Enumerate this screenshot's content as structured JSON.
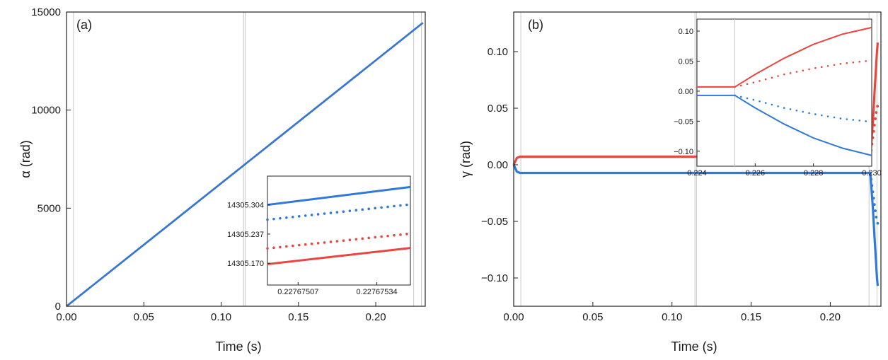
{
  "chart_data": [
    {
      "panel": "(a)",
      "type": "line",
      "xlabel": "Time (s)",
      "ylabel": "α (rad)",
      "xlim": [
        0.0,
        0.232
      ],
      "ylim": [
        0,
        15000
      ],
      "xticks": [
        0.0,
        0.05,
        0.1,
        0.15,
        0.2
      ],
      "xtick_labels": [
        "0.00",
        "0.05",
        "0.10",
        "0.15",
        "0.20"
      ],
      "yticks": [
        0,
        5000,
        10000,
        15000
      ],
      "ytick_labels": [
        "0",
        "5000",
        "10000",
        "15000"
      ],
      "vlines": [
        0.0045,
        0.1145,
        0.1155,
        0.2245,
        0.2295
      ],
      "series": [
        {
          "name": "red",
          "color": "#e8463f",
          "style": "solid",
          "x": [
            0.0,
            0.2305
          ],
          "y": [
            0,
            14450
          ]
        },
        {
          "name": "blue",
          "color": "#2f7ad8",
          "style": "solid",
          "x": [
            0.0,
            0.2305
          ],
          "y": [
            0,
            14450
          ]
        }
      ],
      "inset": {
        "xlim": [
          0.227674965,
          0.227675455
        ],
        "ylim": [
          14305.12,
          14305.37
        ],
        "xticks": [
          0.22767507,
          0.22767534
        ],
        "xtick_labels": [
          "0.22767507",
          "0.22767534"
        ],
        "yticks": [
          14305.17,
          14305.237,
          14305.304
        ],
        "ytick_labels": [
          "14305.170",
          "14305.237",
          "14305.304"
        ],
        "series": [
          {
            "name": "blue-solid",
            "color": "#2f7ad8",
            "style": "solid",
            "x": [
              0.227674965,
              0.227675455
            ],
            "y": [
              14305.304,
              14305.345
            ]
          },
          {
            "name": "blue-dotted",
            "color": "#2f7ad8",
            "style": "dotted",
            "x": [
              0.227674965,
              0.227675455
            ],
            "y": [
              14305.27,
              14305.305
            ]
          },
          {
            "name": "red-dotted",
            "color": "#e8463f",
            "style": "dotted",
            "x": [
              0.227674965,
              0.227675455
            ],
            "y": [
              14305.204,
              14305.238
            ]
          },
          {
            "name": "red-solid",
            "color": "#e8463f",
            "style": "solid",
            "x": [
              0.227674965,
              0.227675455
            ],
            "y": [
              14305.168,
              14305.205
            ]
          }
        ]
      }
    },
    {
      "panel": "(b)",
      "type": "line",
      "xlabel": "Time (s)",
      "ylabel": "γ (rad)",
      "xlim": [
        0.0,
        0.232
      ],
      "ylim": [
        -0.125,
        0.135
      ],
      "xticks": [
        0.0,
        0.05,
        0.1,
        0.15,
        0.2
      ],
      "xtick_labels": [
        "0.00",
        "0.05",
        "0.10",
        "0.15",
        "0.20"
      ],
      "yticks": [
        -0.1,
        -0.05,
        0.0,
        0.05,
        0.1
      ],
      "ytick_labels": [
        "−0.10",
        "−0.05",
        "0.00",
        "0.05",
        "0.10"
      ],
      "vlines": [
        0.0045,
        0.1145,
        0.1155,
        0.2245,
        0.2295
      ],
      "series": [
        {
          "name": "red-solid",
          "color": "#e8463f",
          "style": "solid",
          "x": [
            0.0,
            0.002,
            0.004,
            0.2253,
            0.227,
            0.228,
            0.229,
            0.2295,
            0.23
          ],
          "y": [
            0.0,
            0.006,
            0.0072,
            0.0072,
            0.04,
            0.065,
            0.088,
            0.1,
            0.108
          ]
        },
        {
          "name": "red-dotted",
          "color": "#e8463f",
          "style": "dotted",
          "x": [
            0.2253,
            0.227,
            0.228,
            0.229,
            0.23
          ],
          "y": [
            0.0072,
            0.025,
            0.036,
            0.046,
            0.053
          ]
        },
        {
          "name": "blue-solid",
          "color": "#2f7ad8",
          "style": "solid",
          "x": [
            0.0,
            0.002,
            0.004,
            0.2253,
            0.227,
            0.228,
            0.229,
            0.2295,
            0.23
          ],
          "y": [
            0.0,
            -0.006,
            -0.0072,
            -0.0072,
            -0.04,
            -0.065,
            -0.088,
            -0.1,
            -0.107
          ]
        },
        {
          "name": "blue-dotted",
          "color": "#2f7ad8",
          "style": "dotted",
          "x": [
            0.2253,
            0.227,
            0.228,
            0.229,
            0.23
          ],
          "y": [
            -0.0072,
            -0.025,
            -0.036,
            -0.046,
            -0.052
          ]
        }
      ],
      "inset": {
        "xlim": [
          0.224,
          0.23
        ],
        "ylim": [
          -0.125,
          0.12
        ],
        "xticks": [
          0.224,
          0.226,
          0.228,
          0.23
        ],
        "xtick_labels": [
          "0.224",
          "0.226",
          "0.228",
          "0.230"
        ],
        "yticks": [
          -0.1,
          -0.05,
          0.0,
          0.05,
          0.1
        ],
        "ytick_labels": [
          "−0.10",
          "−0.05",
          "0.00",
          "0.05",
          "0.10"
        ],
        "vlines": [
          0.2253
        ],
        "series": [
          {
            "name": "red-solid",
            "color": "#e8463f",
            "style": "solid",
            "x": [
              0.224,
              0.2253,
              0.226,
              0.227,
              0.228,
              0.229,
              0.23
            ],
            "y": [
              0.007,
              0.007,
              0.028,
              0.055,
              0.078,
              0.095,
              0.106
            ]
          },
          {
            "name": "red-dotted",
            "color": "#e8463f",
            "style": "dotted",
            "x": [
              0.2253,
              0.226,
              0.227,
              0.228,
              0.229,
              0.23
            ],
            "y": [
              0.007,
              0.015,
              0.028,
              0.038,
              0.046,
              0.051
            ]
          },
          {
            "name": "blue-dotted",
            "color": "#2f7ad8",
            "style": "dotted",
            "x": [
              0.2253,
              0.226,
              0.227,
              0.228,
              0.229,
              0.23
            ],
            "y": [
              -0.007,
              -0.015,
              -0.028,
              -0.038,
              -0.046,
              -0.051
            ]
          },
          {
            "name": "blue-solid",
            "color": "#2f7ad8",
            "style": "solid",
            "x": [
              0.224,
              0.2253,
              0.226,
              0.227,
              0.228,
              0.229,
              0.23
            ],
            "y": [
              -0.007,
              -0.007,
              -0.028,
              -0.055,
              -0.078,
              -0.095,
              -0.107
            ]
          }
        ]
      }
    }
  ]
}
